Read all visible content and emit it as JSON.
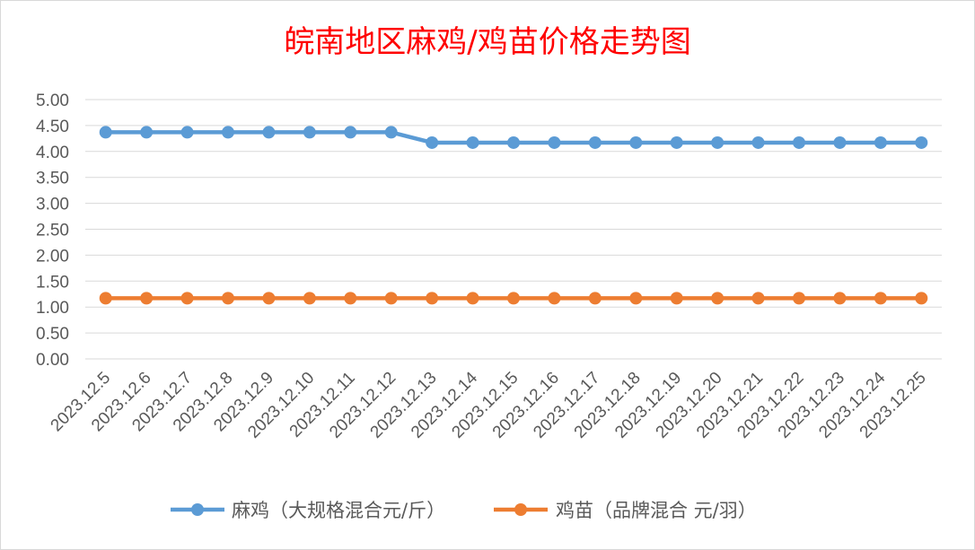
{
  "chart_data": {
    "type": "line",
    "title": "皖南地区麻鸡/鸡苗价格走势图",
    "title_color": "#ff0000",
    "categories": [
      "2023.12.5",
      "2023.12.6",
      "2023.12.7",
      "2023.12.8",
      "2023.12.9",
      "2023.12.10",
      "2023.12.11",
      "2023.12.12",
      "2023.12.13",
      "2023.12.14",
      "2023.12.15",
      "2023.12.16",
      "2023.12.17",
      "2023.12.18",
      "2023.12.19",
      "2023.12.20",
      "2023.12.21",
      "2023.12.22",
      "2023.12.23",
      "2023.12.24",
      "2023.12.25"
    ],
    "y_ticks": [
      "0.00",
      "0.50",
      "1.00",
      "1.50",
      "2.00",
      "2.50",
      "3.00",
      "3.50",
      "4.00",
      "4.50",
      "5.00"
    ],
    "ylim": [
      0,
      5
    ],
    "grid": true,
    "legend_position": "bottom",
    "series": [
      {
        "name": "麻鸡（大规格混合元/斤）",
        "color": "#5b9bd5",
        "values": [
          4.37,
          4.37,
          4.37,
          4.37,
          4.37,
          4.37,
          4.37,
          4.37,
          4.17,
          4.17,
          4.17,
          4.17,
          4.17,
          4.17,
          4.17,
          4.17,
          4.17,
          4.17,
          4.17,
          4.17,
          4.17
        ]
      },
      {
        "name": "鸡苗（品牌混合 元/羽）",
        "color": "#ed7d31",
        "values": [
          1.17,
          1.17,
          1.17,
          1.17,
          1.17,
          1.17,
          1.17,
          1.17,
          1.17,
          1.17,
          1.17,
          1.17,
          1.17,
          1.17,
          1.17,
          1.17,
          1.17,
          1.17,
          1.17,
          1.17,
          1.17
        ]
      }
    ]
  }
}
